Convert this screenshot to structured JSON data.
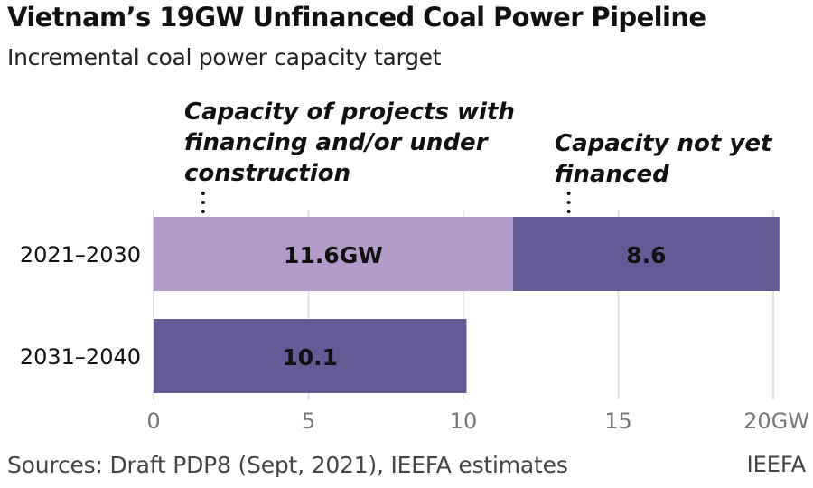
{
  "header": {
    "title": "Vietnam’s 19GW Unfinanced Coal Power Pipeline",
    "subtitle": "Incremental coal power capacity target"
  },
  "footer": {
    "source": "Sources: Draft PDP8 (Sept, 2021), IEEFA estimates",
    "brand": "IEEFA"
  },
  "chart_data": {
    "type": "bar",
    "orientation": "horizontal",
    "stacked": true,
    "categories": [
      "2021–2030",
      "2031–2040"
    ],
    "series": [
      {
        "name": "Capacity of projects with financing and/or under construction",
        "color": "#b39bca",
        "values": [
          11.6,
          null
        ],
        "data_labels": [
          "11.6GW",
          ""
        ]
      },
      {
        "name": "Capacity not yet financed",
        "color": "#625b96",
        "values": [
          8.6,
          10.1
        ],
        "data_labels": [
          "8.6",
          "10.1"
        ]
      }
    ],
    "annotations": [
      {
        "text_lines": [
          "Capacity of projects with",
          "financing and/or under",
          "construction"
        ],
        "points_to_x": 1.6
      },
      {
        "text_lines": [
          "Capacity not yet",
          "financed"
        ],
        "points_to_x": 13.4
      }
    ],
    "xlim": [
      0,
      20
    ],
    "xticks": [
      0,
      5,
      10,
      15,
      20
    ],
    "xtick_labels": [
      "0",
      "5",
      "10",
      "15",
      "20GW"
    ],
    "grid": "vertical",
    "legend": "none (annotations above bars)"
  }
}
